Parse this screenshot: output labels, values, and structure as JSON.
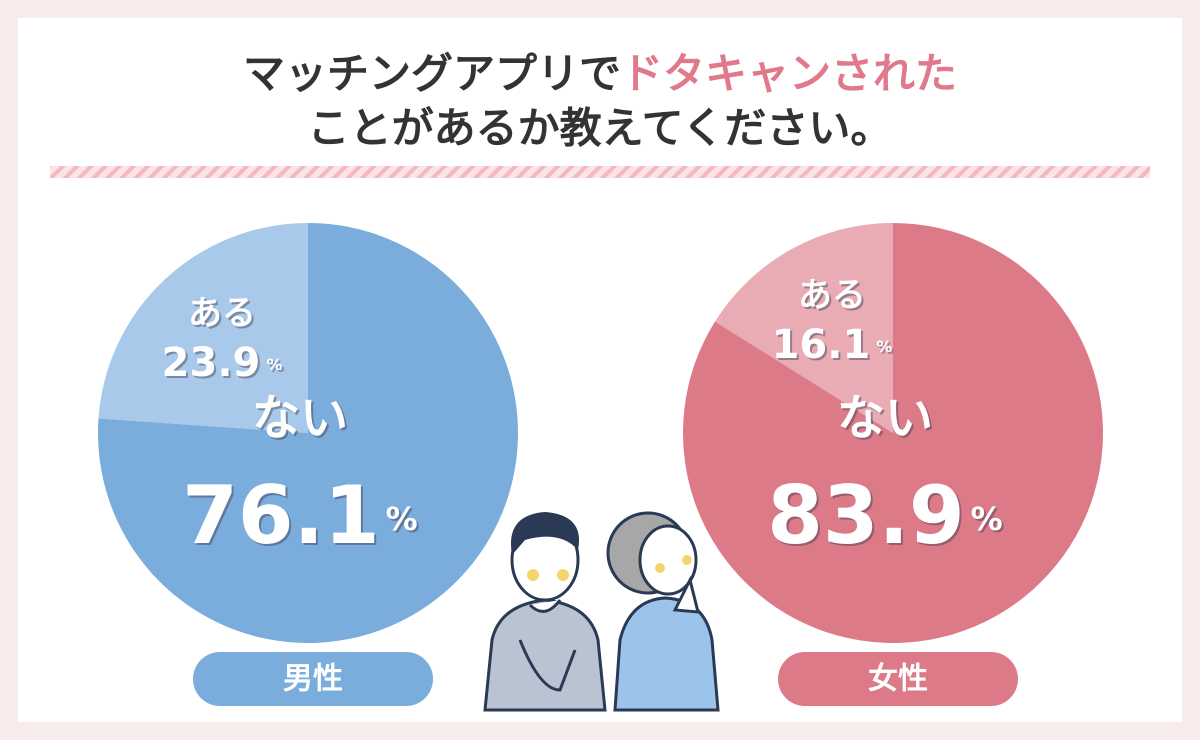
{
  "title_parts": [
    "マッチングアプリで",
    "ドタキャンされた",
    "ことがあるか教えてください。"
  ],
  "chart_data": [
    {
      "type": "pie",
      "label": "男性",
      "unit": "%",
      "categories": [
        "ある",
        "ない"
      ],
      "values": [
        23.9,
        76.1
      ],
      "colors": [
        "#a9c9ea",
        "#7aacdc"
      ],
      "label_color": "#7aacdc"
    },
    {
      "type": "pie",
      "label": "女性",
      "unit": "%",
      "categories": [
        "ある",
        "ない"
      ],
      "values": [
        16.1,
        83.9
      ],
      "colors": [
        "#e9abb4",
        "#dc7a88"
      ],
      "label_color": "#dc7a88"
    }
  ]
}
